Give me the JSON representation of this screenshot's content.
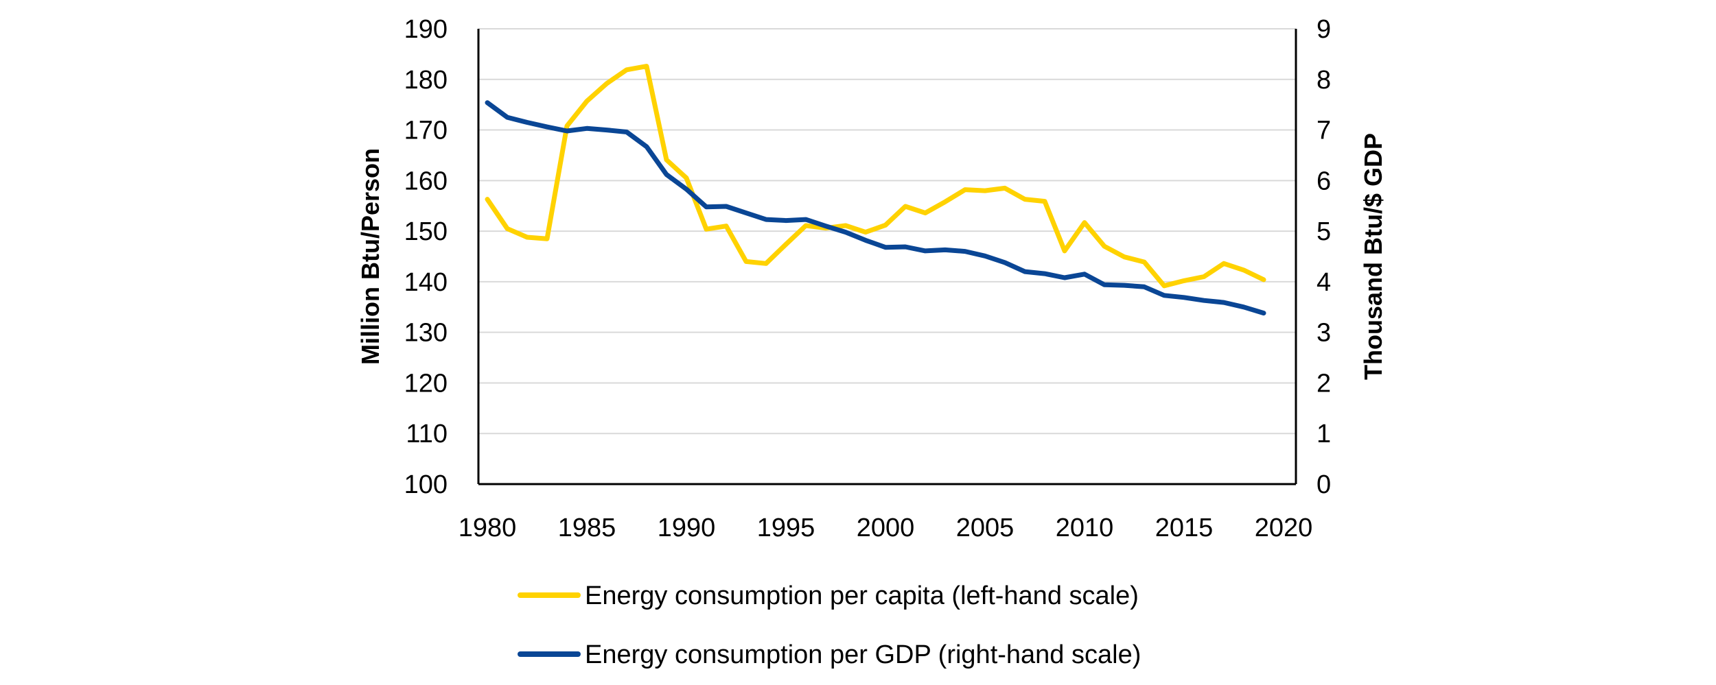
{
  "chart_data": {
    "type": "line",
    "x_ticks": [
      "1980",
      "1985",
      "1990",
      "1995",
      "2000",
      "2005",
      "2010",
      "2015",
      "2020"
    ],
    "left_axis": {
      "label": "Million Btu/Person",
      "ylim": [
        100,
        190
      ],
      "ticks": [
        "100",
        "110",
        "120",
        "130",
        "140",
        "150",
        "160",
        "170",
        "180",
        "190"
      ]
    },
    "right_axis": {
      "label": "Thousand Btu/$ GDP",
      "ylim": [
        0,
        9
      ],
      "ticks": [
        "0",
        "1",
        "2",
        "3",
        "4",
        "5",
        "6",
        "7",
        "8",
        "9"
      ]
    },
    "xlim": [
      1980,
      2020
    ],
    "grid": "horizontal",
    "legend_position": "bottom",
    "x": [
      1980,
      1981,
      1982,
      1983,
      1984,
      1985,
      1986,
      1987,
      1988,
      1989,
      1990,
      1991,
      1992,
      1993,
      1994,
      1995,
      1996,
      1997,
      1998,
      1999,
      2000,
      2001,
      2002,
      2003,
      2004,
      2005,
      2006,
      2007,
      2008,
      2009,
      2010,
      2011,
      2012,
      2013,
      2014,
      2015,
      2016,
      2017,
      2018,
      2019
    ],
    "series": [
      {
        "name": "Energy consumption per capita (left-hand scale)",
        "axis": "left",
        "color": "#FFD200",
        "values": [
          156.3,
          150.5,
          148.8,
          148.5,
          170.8,
          175.7,
          179.2,
          181.9,
          182.6,
          164.1,
          160.5,
          150.4,
          151.0,
          144.0,
          143.6,
          147.4,
          151.1,
          150.6,
          151.1,
          149.8,
          151.2,
          154.9,
          153.6,
          155.8,
          158.2,
          158.0,
          158.5,
          156.3,
          155.9,
          146.1,
          151.7,
          147.0,
          144.9,
          143.9,
          139.2,
          140.2,
          141.0,
          143.6,
          142.3,
          140.4
        ]
      },
      {
        "name": "Energy consumption per GDP (right-hand scale)",
        "axis": "right",
        "color": "#0A4695",
        "values": [
          7.54,
          7.25,
          7.15,
          7.06,
          6.98,
          7.03,
          7.0,
          6.96,
          6.67,
          6.12,
          5.83,
          5.48,
          5.49,
          5.36,
          5.23,
          5.21,
          5.23,
          5.1,
          4.98,
          4.82,
          4.68,
          4.69,
          4.61,
          4.63,
          4.6,
          4.51,
          4.38,
          4.2,
          4.16,
          4.08,
          4.15,
          3.94,
          3.93,
          3.9,
          3.73,
          3.69,
          3.63,
          3.59,
          3.5,
          3.38
        ]
      }
    ]
  }
}
